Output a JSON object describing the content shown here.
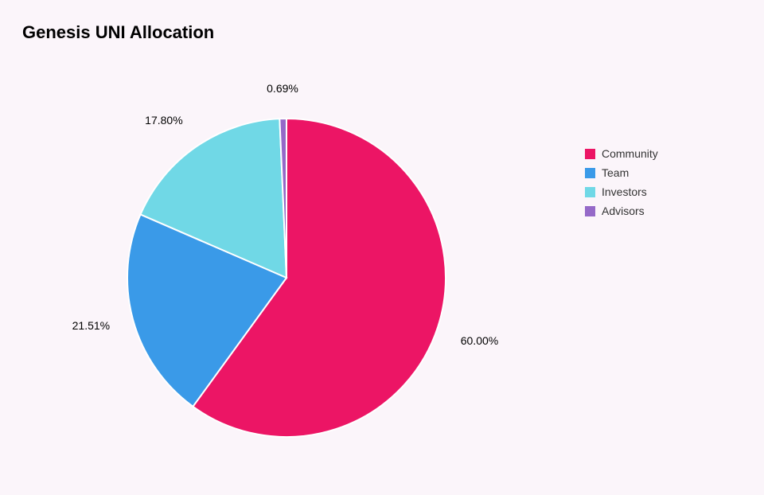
{
  "title": "Genesis UNI Allocation",
  "chart": {
    "type": "pie",
    "background_color": "#fbf5fa",
    "radius": 200,
    "stroke_color": "#ffffff",
    "stroke_width": 2,
    "start_angle_deg": -90,
    "label_fontsize": 14,
    "label_color": "#000000",
    "slices": [
      {
        "name": "Community",
        "value": 60.0,
        "label": "60.00%",
        "color": "#ec1565"
      },
      {
        "name": "Team",
        "value": 21.51,
        "label": "21.51%",
        "color": "#3a9ae8"
      },
      {
        "name": "Investors",
        "value": 17.8,
        "label": "17.80%",
        "color": "#70d8e6"
      },
      {
        "name": "Advisors",
        "value": 0.69,
        "label": "0.69%",
        "color": "#9569c8"
      }
    ]
  },
  "legend": {
    "fontsize": 14,
    "swatch_size": 13,
    "text_color": "#333333",
    "items": [
      {
        "label": "Community",
        "color": "#ec1565"
      },
      {
        "label": "Team",
        "color": "#3a9ae8"
      },
      {
        "label": "Investors",
        "color": "#70d8e6"
      },
      {
        "label": "Advisors",
        "color": "#9569c8"
      }
    ]
  }
}
